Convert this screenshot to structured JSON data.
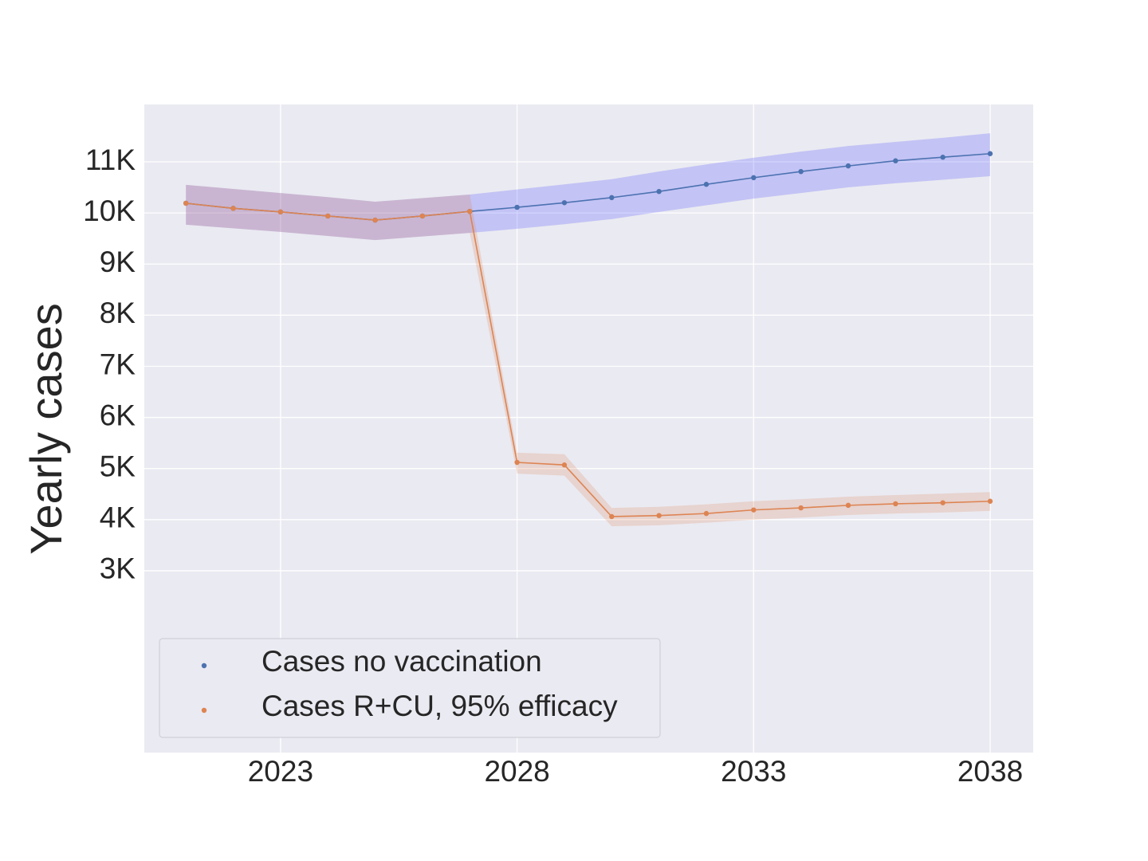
{
  "chart_data": {
    "type": "line",
    "ylabel": "Yearly cases",
    "x": [
      2021,
      2022,
      2023,
      2024,
      2025,
      2026,
      2027,
      2028,
      2029,
      2030,
      2031,
      2032,
      2033,
      2034,
      2035,
      2036,
      2037,
      2038
    ],
    "series": [
      {
        "name": "Cases no vaccination",
        "color": "#4c72b0",
        "band_color": "#3a3aff",
        "values": [
          10190,
          10090,
          10020,
          9940,
          9860,
          9940,
          10030,
          10110,
          10200,
          10300,
          10420,
          10560,
          10690,
          10810,
          10920,
          11020,
          11090,
          11160
        ],
        "upper": [
          10550,
          10470,
          10390,
          10310,
          10220,
          10290,
          10360,
          10460,
          10560,
          10660,
          10810,
          10950,
          11080,
          11200,
          11310,
          11390,
          11470,
          11560
        ],
        "lower": [
          9770,
          9700,
          9630,
          9550,
          9470,
          9540,
          9610,
          9690,
          9780,
          9880,
          10020,
          10150,
          10280,
          10390,
          10500,
          10580,
          10650,
          10720
        ]
      },
      {
        "name": "Cases R+CU, 95% efficacy",
        "color": "#dd8452",
        "band_color": "#dd8452",
        "values": [
          10190,
          10090,
          10020,
          9940,
          9860,
          9940,
          10030,
          5120,
          5070,
          4060,
          4080,
          4120,
          4190,
          4230,
          4280,
          4310,
          4330,
          4360
        ],
        "upper": [
          10550,
          10470,
          10390,
          10310,
          10220,
          10290,
          10360,
          5310,
          5280,
          4230,
          4250,
          4300,
          4360,
          4400,
          4450,
          4480,
          4510,
          4540
        ],
        "lower": [
          9770,
          9700,
          9630,
          9550,
          9470,
          9540,
          9610,
          4900,
          4860,
          3870,
          3890,
          3940,
          4000,
          4040,
          4090,
          4120,
          4140,
          4170
        ]
      }
    ],
    "xlim": [
      2020.12,
      2038.91
    ],
    "xticks": [
      2023,
      2028,
      2033,
      2038
    ],
    "ylim": [
      -557,
      12123
    ],
    "yticks": [
      {
        "value": 3000,
        "label": "3K"
      },
      {
        "value": 4000,
        "label": "4K"
      },
      {
        "value": 5000,
        "label": "5K"
      },
      {
        "value": 6000,
        "label": "6K"
      },
      {
        "value": 7000,
        "label": "7K"
      },
      {
        "value": 8000,
        "label": "8K"
      },
      {
        "value": 9000,
        "label": "9K"
      },
      {
        "value": 10000,
        "label": "10K"
      },
      {
        "value": 11000,
        "label": "11K"
      }
    ],
    "grid": true,
    "legend": "lower left"
  }
}
